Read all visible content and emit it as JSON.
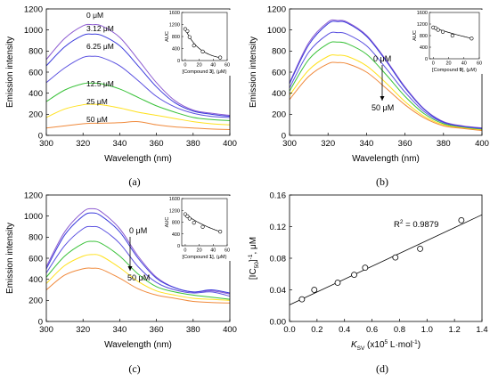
{
  "colors": {
    "purple": "#8c5ad0",
    "blue": "#3b3bdc",
    "indigo": "#5a50e0",
    "green": "#3ac23a",
    "yellow": "#ffe11e",
    "orange": "#f08a3c",
    "black": "#000000"
  },
  "chart_data": [
    {
      "id": "a",
      "panel_label": "(a)",
      "type": "line",
      "xlabel": "Wavelength (nm)",
      "ylabel": "Emission intensity",
      "xlim": [
        300,
        400
      ],
      "ylim": [
        0,
        1200
      ],
      "xticks": [
        300,
        320,
        340,
        360,
        380,
        400
      ],
      "yticks": [
        0,
        200,
        400,
        600,
        800,
        1000,
        1200
      ],
      "x": [
        300,
        310,
        320,
        325,
        330,
        340,
        350,
        360,
        370,
        380,
        390,
        400
      ],
      "series": [
        {
          "name": "0 μM",
          "color": "purple",
          "values": [
            720,
            920,
            1040,
            1050,
            1040,
            930,
            720,
            500,
            330,
            240,
            210,
            190
          ]
        },
        {
          "name": "3.12 μM",
          "color": "blue",
          "values": [
            660,
            840,
            950,
            960,
            950,
            850,
            660,
            460,
            310,
            230,
            200,
            180
          ]
        },
        {
          "name": "6.25 μM",
          "color": "indigo",
          "values": [
            500,
            640,
            740,
            750,
            740,
            660,
            520,
            370,
            270,
            210,
            180,
            170
          ]
        },
        {
          "name": "12.5 μM",
          "color": "green",
          "values": [
            320,
            430,
            490,
            495,
            490,
            440,
            360,
            280,
            220,
            170,
            150,
            140
          ]
        },
        {
          "name": "25 μM",
          "color": "yellow",
          "values": [
            170,
            250,
            290,
            295,
            290,
            260,
            220,
            190,
            160,
            130,
            110,
            100
          ]
        },
        {
          "name": "50 μM",
          "color": "orange",
          "values": [
            70,
            90,
            110,
            115,
            115,
            120,
            130,
            100,
            80,
            70,
            60,
            55
          ]
        }
      ],
      "inset": {
        "xlabel_prefix": "[Compound ",
        "xlabel_bold": "3",
        "xlabel_suffix": "], (μM)",
        "ylabel": "AUC",
        "xlim": [
          -5,
          60
        ],
        "ylim": [
          0,
          1600
        ],
        "xticks": [
          0,
          20,
          40,
          60
        ],
        "yticks": [
          0,
          400,
          800,
          1200,
          1600
        ],
        "points": {
          "x": [
            0,
            3.12,
            6.25,
            12.5,
            25,
            50
          ],
          "y": [
            1050,
            980,
            780,
            500,
            300,
            100
          ]
        },
        "fit": {
          "type": "exp",
          "a": 1050,
          "k": 0.048
        }
      }
    },
    {
      "id": "b",
      "panel_label": "(b)",
      "type": "line",
      "xlabel": "Wavelength (nm)",
      "ylabel": "Emission intensity",
      "xlim": [
        300,
        400
      ],
      "ylim": [
        0,
        1200
      ],
      "xticks": [
        300,
        320,
        340,
        360,
        380,
        400
      ],
      "yticks": [
        0,
        200,
        400,
        600,
        800,
        1000,
        1200
      ],
      "annotation_top": "0 μM",
      "annotation_bottom": "50 μM",
      "x": [
        300,
        310,
        320,
        325,
        330,
        340,
        350,
        360,
        370,
        380,
        390,
        400
      ],
      "series": [
        {
          "color": "purple",
          "values": [
            500,
            880,
            1075,
            1090,
            1075,
            950,
            720,
            460,
            250,
            130,
            90,
            70
          ]
        },
        {
          "color": "blue",
          "values": [
            490,
            860,
            1060,
            1080,
            1065,
            940,
            710,
            450,
            245,
            125,
            85,
            65
          ]
        },
        {
          "color": "indigo",
          "values": [
            450,
            790,
            960,
            975,
            960,
            850,
            640,
            410,
            225,
            120,
            80,
            60
          ]
        },
        {
          "color": "green",
          "values": [
            420,
            720,
            870,
            885,
            870,
            770,
            580,
            370,
            205,
            110,
            75,
            55
          ]
        },
        {
          "color": "yellow",
          "values": [
            380,
            620,
            750,
            760,
            750,
            660,
            500,
            320,
            180,
            100,
            70,
            50
          ]
        },
        {
          "color": "orange",
          "values": [
            340,
            560,
            680,
            690,
            680,
            600,
            450,
            290,
            165,
            90,
            65,
            45
          ]
        }
      ],
      "inset": {
        "xlabel_prefix": "[Compound ",
        "xlabel_bold": "9",
        "xlabel_suffix": "], (μM)",
        "ylabel": "AUC",
        "xlim": [
          -5,
          60
        ],
        "ylim": [
          0,
          1600
        ],
        "xticks": [
          0,
          20,
          40,
          60
        ],
        "yticks": [
          0,
          400,
          800,
          1200,
          1600
        ],
        "points": {
          "x": [
            0,
            3.12,
            6.25,
            12.5,
            25,
            50
          ],
          "y": [
            1080,
            1060,
            1000,
            930,
            800,
            700
          ]
        },
        "fit": {
          "type": "exp",
          "a": 1080,
          "k": 0.0085
        }
      }
    },
    {
      "id": "c",
      "panel_label": "(c)",
      "type": "line",
      "xlabel": "Wavelength (nm)",
      "ylabel": "Emission intensity",
      "xlim": [
        300,
        400
      ],
      "ylim": [
        0,
        1200
      ],
      "xticks": [
        300,
        320,
        340,
        360,
        380,
        400
      ],
      "yticks": [
        0,
        200,
        400,
        600,
        800,
        1000,
        1200
      ],
      "annotation_top": "0 μM",
      "annotation_bottom": "50 μM",
      "x": [
        300,
        310,
        320,
        325,
        330,
        340,
        350,
        360,
        370,
        380,
        390,
        400
      ],
      "series": [
        {
          "color": "purple",
          "values": [
            520,
            850,
            1040,
            1070,
            1040,
            880,
            620,
            420,
            320,
            280,
            290,
            260
          ]
        },
        {
          "color": "blue",
          "values": [
            500,
            820,
            1000,
            1030,
            1000,
            850,
            600,
            410,
            320,
            280,
            300,
            270
          ]
        },
        {
          "color": "indigo",
          "values": [
            460,
            720,
            880,
            900,
            880,
            740,
            520,
            370,
            300,
            270,
            280,
            240
          ]
        },
        {
          "color": "green",
          "values": [
            420,
            620,
            740,
            760,
            740,
            620,
            450,
            330,
            280,
            250,
            230,
            210
          ]
        },
        {
          "color": "yellow",
          "values": [
            360,
            530,
            620,
            635,
            620,
            510,
            380,
            290,
            250,
            220,
            210,
            200
          ]
        },
        {
          "color": "orange",
          "values": [
            300,
            440,
            500,
            505,
            495,
            410,
            310,
            250,
            220,
            190,
            180,
            175
          ]
        }
      ],
      "inset": {
        "xlabel_prefix": "[Compound ",
        "xlabel_bold": "1",
        "xlabel_suffix": "], (μM)",
        "ylabel": "AUC",
        "xlim": [
          -5,
          60
        ],
        "ylim": [
          0,
          1600
        ],
        "xticks": [
          0,
          20,
          40,
          60
        ],
        "yticks": [
          0,
          400,
          800,
          1200,
          1600
        ],
        "points": {
          "x": [
            0,
            3.12,
            6.25,
            12.5,
            25,
            50
          ],
          "y": [
            1070,
            1000,
            920,
            780,
            640,
            480
          ]
        },
        "fit": {
          "type": "exp",
          "a": 1070,
          "k": 0.016
        }
      }
    },
    {
      "id": "d",
      "panel_label": "(d)",
      "type": "scatter",
      "xlabel_parts": [
        "K",
        "SV",
        " (x10",
        "5",
        " L·mol",
        "-1",
        ")"
      ],
      "ylabel_parts": [
        "[IC",
        "50",
        "]",
        "-1",
        ", μM"
      ],
      "r2_label": "R",
      "r2_sup": "2",
      "r2_value": " = 0.9879",
      "xlim": [
        0.0,
        1.4
      ],
      "ylim": [
        0.0,
        0.16
      ],
      "xticks": [
        0.0,
        0.2,
        0.4,
        0.6,
        0.8,
        1.0,
        1.2,
        1.4
      ],
      "xtick_labels": [
        "0.0",
        "0.2",
        "0.4",
        "0.6",
        "0.8",
        "1.0",
        "1.2",
        "1.4"
      ],
      "yticks": [
        0.0,
        0.04,
        0.08,
        0.12,
        0.16
      ],
      "ytick_labels": [
        "0.00",
        "0.04",
        "0.08",
        "0.12",
        "0.16"
      ],
      "points": {
        "x": [
          0.09,
          0.18,
          0.35,
          0.47,
          0.55,
          0.77,
          0.95,
          1.25
        ],
        "y": [
          0.028,
          0.04,
          0.049,
          0.059,
          0.068,
          0.081,
          0.092,
          0.128
        ]
      },
      "fit_line": {
        "x": [
          0.0,
          1.4
        ],
        "y": [
          0.021,
          0.135
        ]
      }
    }
  ]
}
